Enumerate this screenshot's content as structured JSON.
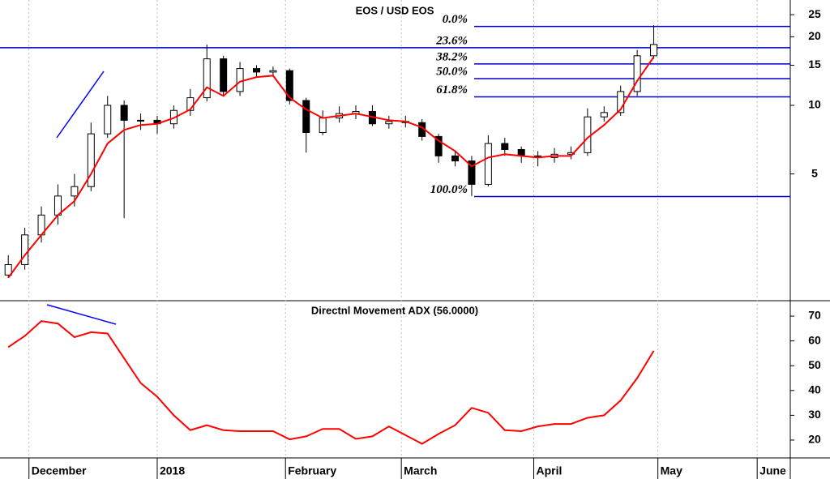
{
  "chart_data": [
    {
      "type": "candlestick",
      "title": "EOS / USD EOS",
      "log_scale": true,
      "xlim": [
        0,
        191
      ],
      "ylim": [
        1.4,
        29
      ],
      "yticks": [
        5,
        10,
        15,
        20,
        25
      ],
      "x": [
        2,
        6,
        10,
        14,
        18,
        22,
        26,
        30,
        34,
        38,
        42,
        46,
        50,
        54,
        58,
        62,
        66,
        70,
        74,
        78,
        82,
        86,
        90,
        94,
        98,
        102,
        106,
        110,
        114,
        118,
        122,
        126,
        130,
        134,
        138,
        142,
        146,
        150,
        154,
        158
      ],
      "open": [
        1.8,
        2.0,
        2.7,
        3.3,
        4.0,
        4.4,
        7.5,
        10.0,
        8.6,
        8.6,
        8.3,
        9.5,
        10.8,
        16.0,
        11.5,
        14.5,
        14.0,
        14.2,
        10.5,
        7.6,
        8.8,
        9.2,
        9.4,
        8.3,
        8.5,
        8.4,
        7.3,
        6.0,
        5.7,
        4.5,
        6.8,
        6.4,
        6.0,
        5.9,
        6.1,
        6.2,
        8.9,
        9.3,
        11.5,
        16.5
      ],
      "high": [
        2.2,
        2.9,
        3.6,
        4.5,
        5.0,
        8.4,
        11.0,
        10.5,
        9.2,
        9.0,
        10.0,
        11.8,
        18.5,
        16.5,
        15.5,
        15.0,
        14.8,
        14.5,
        10.8,
        9.5,
        9.9,
        10.0,
        10.0,
        9.0,
        9.0,
        8.7,
        7.5,
        6.3,
        6.0,
        7.4,
        7.2,
        6.6,
        6.3,
        6.5,
        6.6,
        9.7,
        9.9,
        12.2,
        17.5,
        22.5
      ],
      "low": [
        1.75,
        1.9,
        2.5,
        3.0,
        3.6,
        4.2,
        7.2,
        3.2,
        7.8,
        7.5,
        7.9,
        9.0,
        10.4,
        11.0,
        11.0,
        13.3,
        13.5,
        10.1,
        6.2,
        7.4,
        8.4,
        8.7,
        8.1,
        7.9,
        8.0,
        7.0,
        5.6,
        5.4,
        4.0,
        4.4,
        6.0,
        5.6,
        5.4,
        5.6,
        5.8,
        6.0,
        8.5,
        9.0,
        11.0,
        16.0
      ],
      "close": [
        2.0,
        2.7,
        3.3,
        4.0,
        4.4,
        7.5,
        10.0,
        8.6,
        8.6,
        8.3,
        9.5,
        10.8,
        16.0,
        11.5,
        14.5,
        14.0,
        14.2,
        10.5,
        7.6,
        8.8,
        9.2,
        9.4,
        8.3,
        8.5,
        8.4,
        7.3,
        6.0,
        5.7,
        4.5,
        6.8,
        6.4,
        6.0,
        5.9,
        6.1,
        6.2,
        8.9,
        9.3,
        11.5,
        16.5,
        18.5
      ],
      "moving_average": {
        "color": "#ff0000",
        "values": [
          1.75,
          2.2,
          2.7,
          3.3,
          3.8,
          5.0,
          6.8,
          7.8,
          8.2,
          8.3,
          8.8,
          9.6,
          12.0,
          11.0,
          12.7,
          13.3,
          13.5,
          10.8,
          9.6,
          8.8,
          9.0,
          9.2,
          8.9,
          8.6,
          8.5,
          8.0,
          7.0,
          6.3,
          5.4,
          5.9,
          6.1,
          6.0,
          5.9,
          6.0,
          6.0,
          7.2,
          8.2,
          9.6,
          12.8,
          16.3
        ]
      },
      "fibonacci": {
        "color": "#0000cc",
        "labels": [
          "0.0%",
          "23.6%",
          "38.2%",
          "50.0%",
          "61.8%",
          "100.0%"
        ],
        "values": [
          22.2,
          17.9,
          15.2,
          13.1,
          10.9,
          3.98
        ]
      }
    },
    {
      "type": "line",
      "title": "Directnl Movement ADX (56.0000)",
      "xlim": [
        0,
        191
      ],
      "ylim": [
        12.8,
        75.9
      ],
      "yticks": [
        20,
        30,
        40,
        50,
        60,
        70
      ],
      "xticks": [
        {
          "value": 7,
          "label": "December"
        },
        {
          "value": 38,
          "label": "2018"
        },
        {
          "value": 69,
          "label": "February"
        },
        {
          "value": 97,
          "label": "March"
        },
        {
          "value": 129,
          "label": "April"
        },
        {
          "value": 159,
          "label": "May"
        },
        {
          "value": 183,
          "label": "June"
        }
      ],
      "x": [
        2,
        6,
        10,
        14,
        18,
        22,
        26,
        30,
        34,
        38,
        42,
        46,
        50,
        54,
        58,
        62,
        66,
        70,
        74,
        78,
        82,
        86,
        90,
        94,
        98,
        102,
        106,
        110,
        114,
        118,
        122,
        126,
        130,
        134,
        138,
        142,
        146,
        150,
        154,
        158
      ],
      "color": "#ff0000",
      "values": [
        57.5,
        62,
        68,
        67,
        61.5,
        63.5,
        63,
        53,
        43,
        37.5,
        30,
        24,
        26,
        24,
        23.6,
        23.6,
        23.6,
        20.3,
        21.5,
        24.5,
        24.5,
        20.5,
        21.5,
        25.5,
        22,
        18.5,
        22.5,
        26,
        33,
        31,
        24,
        23.6,
        25.5,
        26.5,
        26.5,
        29,
        30,
        36,
        45,
        56
      ]
    }
  ]
}
